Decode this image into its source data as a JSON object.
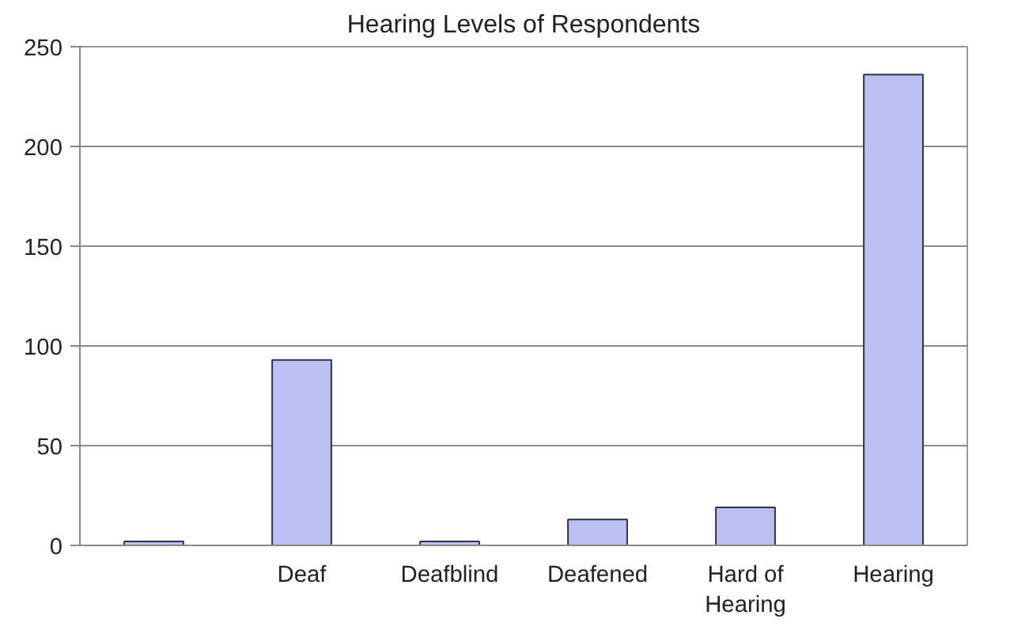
{
  "chart_data": {
    "type": "bar",
    "title": "Hearing Levels of Respondents",
    "categories": [
      null,
      "Deaf",
      "Deafblind",
      "Deafened",
      "Hard of Hearing",
      "Hearing"
    ],
    "values": [
      2,
      93,
      2,
      13,
      19,
      236
    ],
    "color": "#b8c0f4",
    "ylim": [
      0,
      250
    ],
    "yticks": [
      0,
      50,
      100,
      150,
      200,
      250
    ],
    "grid": "y"
  }
}
